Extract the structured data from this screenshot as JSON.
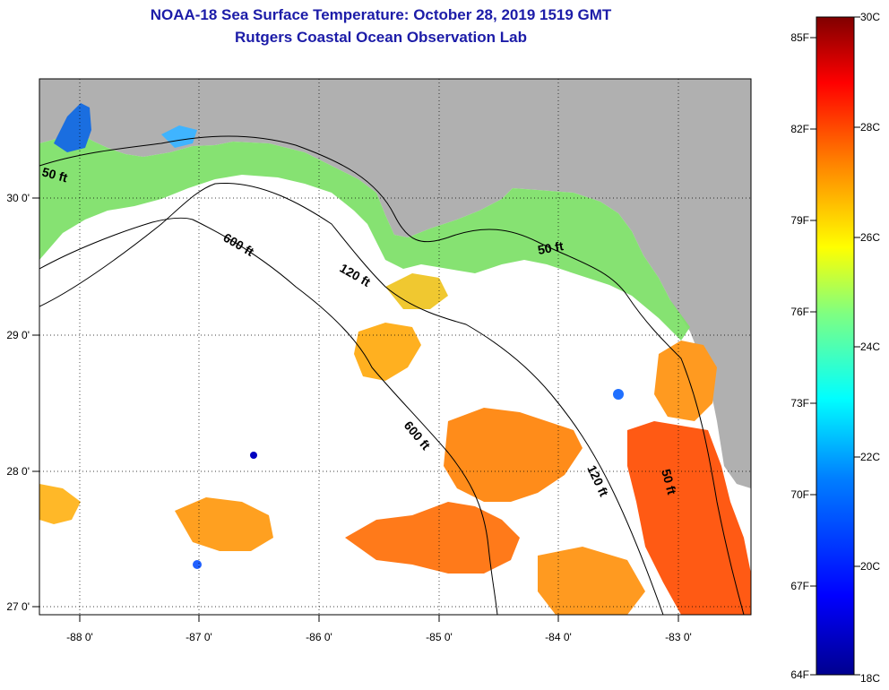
{
  "title": "NOAA-18 Sea Surface Temperature:  October 28, 2019 1519 GMT",
  "subtitle": "Rutgers Coastal Ocean Observation Lab",
  "map": {
    "lon_labels": [
      "-88 0'",
      "-87 0'",
      "-86 0'",
      "-85 0'",
      "-84 0'",
      "-83 0'"
    ],
    "lat_labels": [
      "30 0'",
      "29 0'",
      "28 0'",
      "27 0'"
    ],
    "contours": [
      "50 ft",
      "600 ft",
      "120 ft",
      "50 ft",
      "600 ft",
      "120 ft",
      "50 ft"
    ],
    "colors": {
      "land": "#b0b0b0",
      "no_data": "#ffffff",
      "coast": "#000000"
    }
  },
  "colorbar": {
    "fahrenheit": [
      "85F",
      "82F",
      "79F",
      "76F",
      "73F",
      "70F",
      "67F",
      "64F"
    ],
    "celsius": [
      "30C",
      "28C",
      "26C",
      "24C",
      "22C",
      "20C",
      "18C"
    ],
    "range_c": [
      18,
      30
    ],
    "colors": [
      "#00008f",
      "#0000ff",
      "#0080ff",
      "#00ffff",
      "#80ff80",
      "#ffff00",
      "#ff8000",
      "#ff0000",
      "#800000"
    ]
  }
}
